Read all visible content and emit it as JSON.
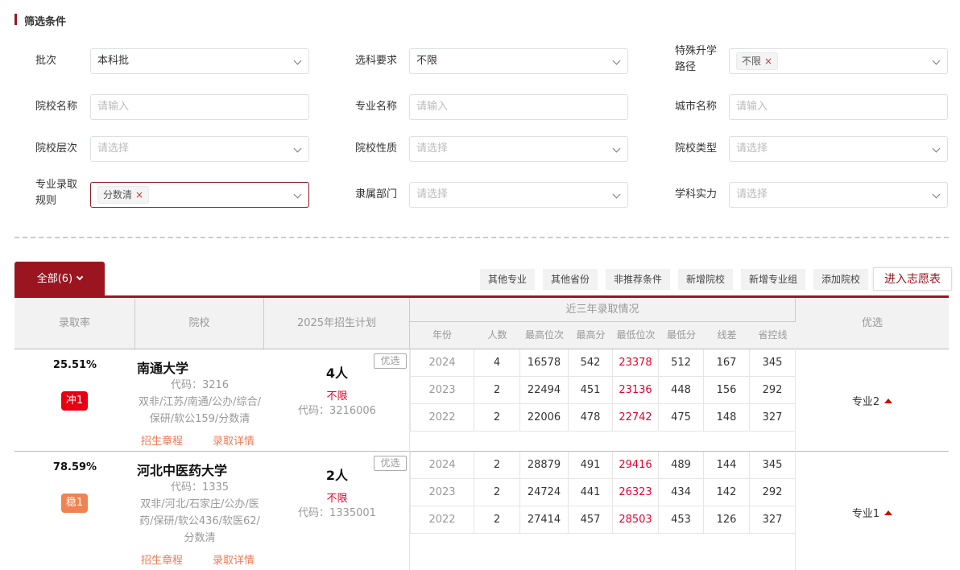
{
  "filter": {
    "title": "筛选条件",
    "fields": [
      {
        "label": "批次",
        "value": "本科批",
        "placeholder": "",
        "type": "select"
      },
      {
        "label": "选科要求",
        "value": "不限",
        "placeholder": "",
        "type": "select"
      },
      {
        "label": "特殊升学路径",
        "tags": [
          "不限"
        ],
        "type": "select"
      },
      {
        "label": "院校名称",
        "value": "",
        "placeholder": "请输入",
        "type": "input"
      },
      {
        "label": "专业名称",
        "value": "",
        "placeholder": "请输入",
        "type": "input"
      },
      {
        "label": "城市名称",
        "value": "",
        "placeholder": "请输入",
        "type": "input"
      },
      {
        "label": "院校层次",
        "value": "",
        "placeholder": "请选择",
        "type": "select"
      },
      {
        "label": "院校性质",
        "value": "",
        "placeholder": "请选择",
        "type": "select"
      },
      {
        "label": "院校类型",
        "value": "",
        "placeholder": "请选择",
        "type": "select"
      },
      {
        "label": "专业录取规则",
        "tags": [
          "分数清"
        ],
        "type": "select"
      },
      {
        "label": "隶属部门",
        "value": "",
        "placeholder": "请选择",
        "type": "select"
      },
      {
        "label": "学科实力",
        "value": "",
        "placeholder": "请选择",
        "type": "select"
      }
    ]
  },
  "tabs": {
    "active": "全部(6)"
  },
  "toolbar": [
    "其他专业",
    "其他省份",
    "非推荐条件",
    "新增院校",
    "新增专业组",
    "添加院校",
    "进入志愿表"
  ],
  "table": {
    "headers": {
      "rate": "录取率",
      "school": "院校",
      "plan": "2025年招生计划",
      "history": "近三年录取情况",
      "pref": "优选",
      "sub": [
        "年份",
        "人数",
        "最高位次",
        "最高分",
        "最低位次",
        "最低分",
        "线差",
        "省控线"
      ]
    },
    "rows": [
      {
        "rate": "25.51%",
        "badge": "冲1",
        "badge_color": "#e60012",
        "name": "南通大学",
        "code": "代码：3216",
        "tags": "双非/江苏/南通/公办/综合/保研/软公159/分数清",
        "links": [
          "招生章程",
          "录取详情"
        ],
        "plan_count": "4人",
        "plan_req": "不限",
        "plan_code": "代码：3216006",
        "opt": "优选",
        "pref": "专业2",
        "history": [
          [
            "2024",
            "4",
            "16578",
            "542",
            "23378",
            "512",
            "167",
            "345"
          ],
          [
            "2023",
            "2",
            "22494",
            "451",
            "23136",
            "448",
            "156",
            "292"
          ],
          [
            "2022",
            "2",
            "22006",
            "478",
            "22742",
            "475",
            "148",
            "327"
          ]
        ]
      },
      {
        "rate": "78.59%",
        "badge": "稳1",
        "badge_color": "#f08352",
        "name": "河北中医药大学",
        "code": "代码：1335",
        "tags": "双非/河北/石家庄/公办/医药/保研/软公436/软医62/分数清",
        "links": [
          "招生章程",
          "录取详情"
        ],
        "plan_count": "2人",
        "plan_req": "不限",
        "plan_code": "代码：1335001",
        "opt": "优选",
        "pref": "专业1",
        "history": [
          [
            "2024",
            "2",
            "28879",
            "491",
            "29416",
            "489",
            "144",
            "345"
          ],
          [
            "2023",
            "2",
            "24724",
            "441",
            "26323",
            "434",
            "142",
            "292"
          ],
          [
            "2022",
            "2",
            "27414",
            "457",
            "28503",
            "453",
            "126",
            "327"
          ]
        ]
      }
    ]
  },
  "colors": {
    "brand": "#9b1520",
    "danger": "#e5002b",
    "badge_chong": "#e60012",
    "badge_wen": "#f08352"
  }
}
